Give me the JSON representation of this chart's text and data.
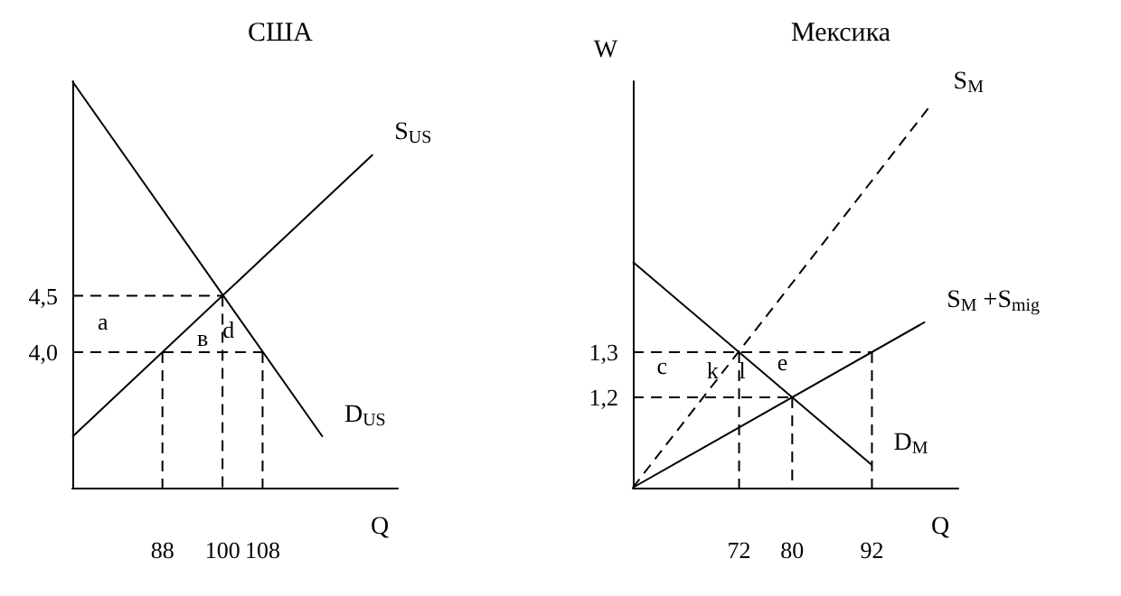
{
  "chart_data": [
    {
      "type": "line",
      "title": "США",
      "xlabel": "Q",
      "xlim": [
        70,
        135
      ],
      "ylim": [
        2.8,
        6.4
      ],
      "xticks": [
        88,
        100,
        108
      ],
      "yticks": [
        {
          "value": 4,
          "label": "4,0"
        },
        {
          "value": 4.5,
          "label": "4,5"
        }
      ],
      "grid": false,
      "legend": false,
      "marker": "none",
      "line_style": "solid",
      "series": [
        {
          "name": "S$_{US}$",
          "color": "#000000",
          "x": [
            70,
            130
          ],
          "values": [
            3.25,
            5.75
          ]
        },
        {
          "name": "D$_{US}$",
          "color": "#000000",
          "x": [
            70,
            120
          ],
          "values": [
            6.4,
            3.25
          ]
        },
        {
          "color": "#000000",
          "line_style": "dashed",
          "x": [
            70,
            100
          ],
          "values": [
            4.5,
            4.5
          ]
        },
        {
          "color": "#000000",
          "line_style": "dashed",
          "x": [
            100,
            100
          ],
          "values": [
            4.5,
            2.8
          ]
        },
        {
          "color": "#000000",
          "line_style": "dashed",
          "x": [
            70,
            108
          ],
          "values": [
            4,
            4
          ]
        },
        {
          "color": "#000000",
          "line_style": "dashed",
          "x": [
            88,
            88
          ],
          "values": [
            4,
            2.8
          ]
        },
        {
          "color": "#000000",
          "line_style": "dashed",
          "x": [
            108,
            108
          ],
          "values": [
            4,
            2.8
          ]
        }
      ],
      "annotations": [
        "a",
        "в",
        "d"
      ]
    },
    {
      "type": "line",
      "title": "Мексика",
      "xlabel": "Q",
      "ylabel": "W",
      "xlim": [
        56,
        105
      ],
      "ylim": [
        1.0,
        1.9
      ],
      "xticks": [
        72,
        80,
        92
      ],
      "yticks": [
        {
          "value": 1.2,
          "label": "1,2"
        },
        {
          "value": 1.3,
          "label": "1,3"
        }
      ],
      "grid": false,
      "legend": false,
      "marker": "none",
      "line_style": "solid",
      "series": [
        {
          "name": "S$_{M}$",
          "color": "#000000",
          "line_style": "dashed",
          "x": [
            56,
            101
          ],
          "values": [
            1.0,
            1.85
          ]
        },
        {
          "name": "S$_{M}$ +S$_{mig}$",
          "color": "#000000",
          "x": [
            56,
            100
          ],
          "values": [
            1.0,
            1.367
          ]
        },
        {
          "name": "D$_{M}$",
          "color": "#000000",
          "x": [
            56,
            92
          ],
          "values": [
            1.5,
            1.05
          ]
        },
        {
          "color": "#000000",
          "line_style": "dashed",
          "x": [
            56,
            92
          ],
          "values": [
            1.3,
            1.3
          ]
        },
        {
          "color": "#000000",
          "line_style": "dashed",
          "x": [
            72,
            72
          ],
          "values": [
            1.3,
            1.0
          ]
        },
        {
          "color": "#000000",
          "line_style": "dashed",
          "x": [
            92,
            92
          ],
          "values": [
            1.3,
            1.0
          ]
        },
        {
          "color": "#000000",
          "line_style": "dashed",
          "x": [
            56,
            80
          ],
          "values": [
            1.2,
            1.2
          ]
        },
        {
          "color": "#000000",
          "line_style": "dashed",
          "x": [
            80,
            80
          ],
          "values": [
            1.2,
            1.0
          ]
        }
      ],
      "annotations": [
        "c",
        {
          "text": "k",
          "x": 68,
          "y": 1.26
        },
        {
          "text": "l",
          "x": 72.5,
          "y": 1.26
        },
        "e"
      ]
    }
  ]
}
